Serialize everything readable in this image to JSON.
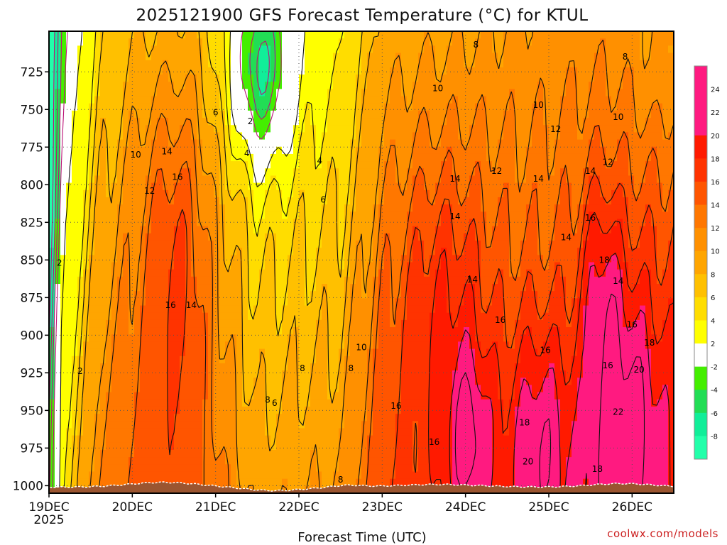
{
  "chart_data": {
    "type": "heatmap",
    "title": "2025121900 GFS Forecast Temperature (°C) for KTUL",
    "xlabel": "Forecast Time (UTC)",
    "ylabel": "",
    "credit": "coolwx.com/models",
    "x_ticks": [
      {
        "value": 0,
        "label": "19DEC",
        "sublabel": "2025"
      },
      {
        "value": 24,
        "label": "20DEC"
      },
      {
        "value": 48,
        "label": "21DEC"
      },
      {
        "value": 72,
        "label": "22DEC"
      },
      {
        "value": 96,
        "label": "23DEC"
      },
      {
        "value": 120,
        "label": "24DEC"
      },
      {
        "value": 144,
        "label": "25DEC"
      },
      {
        "value": 168,
        "label": "26DEC"
      }
    ],
    "xlim": [
      0,
      180
    ],
    "ylim": [
      1005,
      698
    ],
    "y_ticks": [
      {
        "value": 725,
        "label": "725"
      },
      {
        "value": 750,
        "label": "750"
      },
      {
        "value": 775,
        "label": "775"
      },
      {
        "value": 800,
        "label": "800"
      },
      {
        "value": 825,
        "label": "825"
      },
      {
        "value": 850,
        "label": "850"
      },
      {
        "value": 875,
        "label": "875"
      },
      {
        "value": 900,
        "label": "900"
      },
      {
        "value": 925,
        "label": "925"
      },
      {
        "value": 950,
        "label": "950"
      },
      {
        "value": 975,
        "label": "975"
      },
      {
        "value": 1000,
        "label": "1000"
      }
    ],
    "colorbar": {
      "levels": [
        24,
        22,
        20,
        18,
        16,
        14,
        12,
        10,
        8,
        6,
        4,
        2,
        -2,
        -4,
        -6,
        -8
      ],
      "labels": [
        "24",
        "22",
        "20",
        "18",
        "16",
        "14",
        "12",
        "10",
        "8",
        "6",
        "4",
        "2",
        "-2",
        "-4",
        "-6",
        "-8"
      ],
      "colors": [
        "#ff1a80",
        "#ff1a80",
        "#ff1a80",
        "#ff1a00",
        "#ff3300",
        "#ff5500",
        "#ff7700",
        "#ff9000",
        "#ffa500",
        "#ffc000",
        "#ffdd00",
        "#ffff00",
        "#ffffff",
        "#44ee00",
        "#22dd55",
        "#11ee99",
        "#22ffaa"
      ]
    },
    "contour_labels": [
      {
        "text": "8",
        "t": 123,
        "p": 707
      },
      {
        "text": "8",
        "t": 166,
        "p": 715
      },
      {
        "text": "10",
        "t": 112,
        "p": 736
      },
      {
        "text": "10",
        "t": 141,
        "p": 747
      },
      {
        "text": "6",
        "t": 48,
        "p": 752
      },
      {
        "text": "2",
        "t": 58,
        "p": 758
      },
      {
        "text": "12",
        "t": 146,
        "p": 763
      },
      {
        "text": "10",
        "t": 164,
        "p": 755
      },
      {
        "text": "10",
        "t": 25,
        "p": 780
      },
      {
        "text": "14",
        "t": 34,
        "p": 778
      },
      {
        "text": "4",
        "t": 57,
        "p": 779
      },
      {
        "text": "4",
        "t": 78,
        "p": 784
      },
      {
        "text": "12",
        "t": 161,
        "p": 785
      },
      {
        "text": "12",
        "t": 129,
        "p": 791
      },
      {
        "text": "14",
        "t": 156,
        "p": 791
      },
      {
        "text": "16",
        "t": 37,
        "p": 795
      },
      {
        "text": "14",
        "t": 117,
        "p": 796
      },
      {
        "text": "14",
        "t": 141,
        "p": 796
      },
      {
        "text": "12",
        "t": 29,
        "p": 804
      },
      {
        "text": "6",
        "t": 79,
        "p": 810
      },
      {
        "text": "14",
        "t": 117,
        "p": 821
      },
      {
        "text": "16",
        "t": 156,
        "p": 822
      },
      {
        "text": "14",
        "t": 149,
        "p": 835
      },
      {
        "text": "2",
        "t": 3,
        "p": 852
      },
      {
        "text": "18",
        "t": 160,
        "p": 850
      },
      {
        "text": "14",
        "t": 122,
        "p": 863
      },
      {
        "text": "14",
        "t": 164,
        "p": 864
      },
      {
        "text": "16",
        "t": 35,
        "p": 880
      },
      {
        "text": "14",
        "t": 41,
        "p": 880
      },
      {
        "text": "16",
        "t": 130,
        "p": 890
      },
      {
        "text": "16",
        "t": 168,
        "p": 893
      },
      {
        "text": "10",
        "t": 90,
        "p": 908
      },
      {
        "text": "18",
        "t": 173,
        "p": 905
      },
      {
        "text": "16",
        "t": 143,
        "p": 910
      },
      {
        "text": "2",
        "t": 9,
        "p": 924
      },
      {
        "text": "8",
        "t": 73,
        "p": 922
      },
      {
        "text": "8",
        "t": 87,
        "p": 922
      },
      {
        "text": "16",
        "t": 161,
        "p": 920
      },
      {
        "text": "20",
        "t": 170,
        "p": 923
      },
      {
        "text": "8",
        "t": 63,
        "p": 943
      },
      {
        "text": "6",
        "t": 65,
        "p": 945
      },
      {
        "text": "16",
        "t": 100,
        "p": 947
      },
      {
        "text": "22",
        "t": 164,
        "p": 951
      },
      {
        "text": "18",
        "t": 137,
        "p": 958
      },
      {
        "text": "16",
        "t": 111,
        "p": 971
      },
      {
        "text": "20",
        "t": 138,
        "p": 984
      },
      {
        "text": "18",
        "t": 158,
        "p": 989
      },
      {
        "text": "8",
        "t": 84,
        "p": 996
      }
    ]
  }
}
